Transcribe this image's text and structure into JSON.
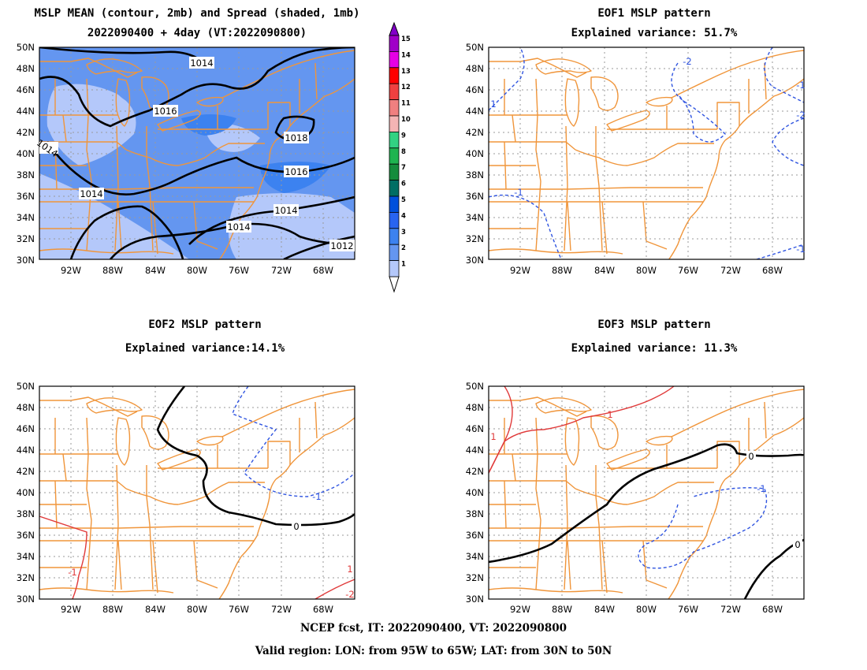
{
  "panels": {
    "mean": {
      "title1": "MSLP MEAN (contour, 2mb) and Spread (shaded, 1mb)",
      "title2": "2022090400 + 4day (VT:2022090800)"
    },
    "eof1": {
      "title1": "EOF1 MSLP pattern",
      "title2": "Explained variance: 51.7%"
    },
    "eof2": {
      "title1": "EOF2 MSLP pattern",
      "title2": "Explained variance:14.1%"
    },
    "eof3": {
      "title1": "EOF3 MSLP pattern",
      "title2": "Explained variance: 11.3%"
    }
  },
  "axes": {
    "lat_labels": [
      "50N",
      "48N",
      "46N",
      "44N",
      "42N",
      "40N",
      "38N",
      "36N",
      "34N",
      "32N",
      "30N"
    ],
    "lon_labels": [
      "92W",
      "88W",
      "84W",
      "80W",
      "76W",
      "72W",
      "68W"
    ]
  },
  "contour_labels": {
    "mean": [
      "1014",
      "1016",
      "1018",
      "1016",
      "1014",
      "1014",
      "1014",
      "1012",
      "1014"
    ],
    "eof1": [
      "-2",
      "1",
      "-1",
      "-1",
      "-2",
      "-1"
    ],
    "eof2": [
      "0",
      "-1",
      "-1",
      "1",
      "-2"
    ],
    "eof3": [
      "1",
      "1",
      "0",
      "-1",
      "0"
    ]
  },
  "colorbar": {
    "levels": [
      "15",
      "14",
      "13",
      "12",
      "11",
      "10",
      "9",
      "8",
      "7",
      "6",
      "5",
      "4",
      "3",
      "2",
      "1"
    ],
    "colors": [
      "#a000c8",
      "#e600e6",
      "#ff0000",
      "#f04040",
      "#f08080",
      "#f4b4b4",
      "#32d282",
      "#1eb450",
      "#148c3c",
      "#006e64",
      "#0050dc",
      "#2864f0",
      "#3c82f0",
      "#6496f0",
      "#b4c8fa"
    ]
  },
  "footer": {
    "line1": "NCEP fcst, IT: 2022090400, VT: 2022090800",
    "line2": "Valid region: LON: from 95W to 65W; LAT: from 30N to 50N"
  }
}
